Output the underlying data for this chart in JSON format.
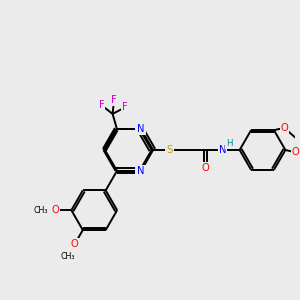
{
  "background_color": "#ebebeb",
  "bond_color": "#000000",
  "atom_colors": {
    "N": "#0000ff",
    "O": "#ff0000",
    "S": "#b8a000",
    "F": "#cc00cc",
    "H": "#008888",
    "C": "#000000"
  },
  "lw": 1.4,
  "fs": 7.2
}
